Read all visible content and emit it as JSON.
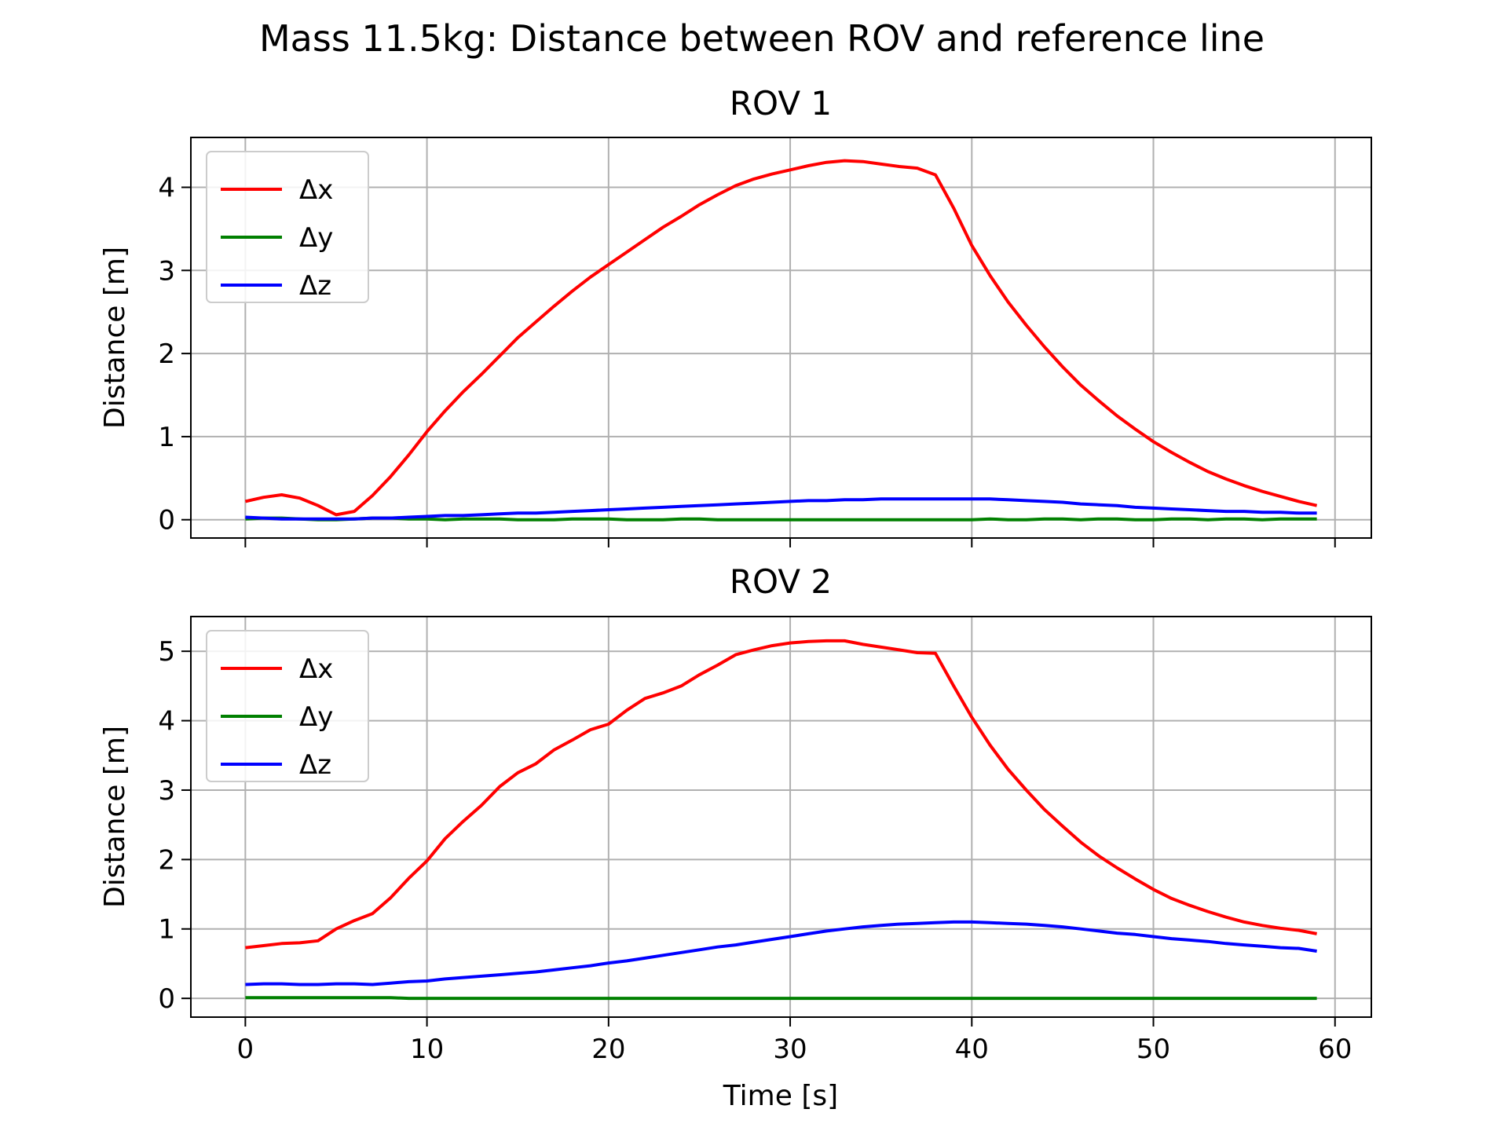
{
  "figure": {
    "suptitle": "Mass 11.5kg: Distance between ROV and reference line",
    "xlabel": "Time [s]"
  },
  "chart_data": [
    {
      "type": "line",
      "title": "ROV 1",
      "xlabel": "",
      "ylabel": "Distance [m]",
      "xlim": [
        -3,
        62
      ],
      "ylim": [
        -0.22,
        4.6
      ],
      "xticks": [
        0,
        10,
        20,
        30,
        40,
        50,
        60
      ],
      "yticks": [
        0,
        1,
        2,
        3,
        4
      ],
      "grid": true,
      "legend": "upper-left",
      "x": [
        0,
        1,
        2,
        3,
        4,
        5,
        6,
        7,
        8,
        9,
        10,
        11,
        12,
        13,
        14,
        15,
        16,
        17,
        18,
        19,
        20,
        21,
        22,
        23,
        24,
        25,
        26,
        27,
        28,
        29,
        30,
        31,
        32,
        33,
        34,
        35,
        36,
        37,
        38,
        39,
        40,
        41,
        42,
        43,
        44,
        45,
        46,
        47,
        48,
        49,
        50,
        51,
        52,
        53,
        54,
        55,
        56,
        57,
        58,
        59
      ],
      "series": [
        {
          "name": "Δx",
          "color": "#ff0000",
          "values": [
            0.22,
            0.27,
            0.3,
            0.26,
            0.17,
            0.06,
            0.1,
            0.29,
            0.52,
            0.78,
            1.06,
            1.31,
            1.54,
            1.75,
            1.97,
            2.19,
            2.38,
            2.57,
            2.75,
            2.92,
            3.07,
            3.22,
            3.37,
            3.52,
            3.65,
            3.79,
            3.91,
            4.02,
            4.1,
            4.16,
            4.21,
            4.26,
            4.3,
            4.32,
            4.31,
            4.28,
            4.25,
            4.23,
            4.15,
            3.75,
            3.3,
            2.94,
            2.62,
            2.34,
            2.08,
            1.84,
            1.62,
            1.43,
            1.25,
            1.09,
            0.94,
            0.81,
            0.69,
            0.58,
            0.49,
            0.41,
            0.34,
            0.28,
            0.22,
            0.17
          ]
        },
        {
          "name": "Δy",
          "color": "#008000",
          "values": [
            0.01,
            0.02,
            0.02,
            0.01,
            0.0,
            0.0,
            0.01,
            0.02,
            0.02,
            0.01,
            0.01,
            0.0,
            0.01,
            0.01,
            0.01,
            0.0,
            0.0,
            0.0,
            0.01,
            0.01,
            0.01,
            0.0,
            0.0,
            0.0,
            0.01,
            0.01,
            0.0,
            0.0,
            0.0,
            0.0,
            0.0,
            0.0,
            0.0,
            0.0,
            0.0,
            0.0,
            0.0,
            0.0,
            0.0,
            0.0,
            0.0,
            0.01,
            0.0,
            0.0,
            0.01,
            0.01,
            0.0,
            0.01,
            0.01,
            0.0,
            0.0,
            0.01,
            0.01,
            0.0,
            0.01,
            0.01,
            0.0,
            0.01,
            0.01,
            0.01
          ]
        },
        {
          "name": "Δz",
          "color": "#0000ff",
          "values": [
            0.03,
            0.02,
            0.01,
            0.01,
            0.01,
            0.01,
            0.01,
            0.02,
            0.02,
            0.03,
            0.04,
            0.05,
            0.05,
            0.06,
            0.07,
            0.08,
            0.08,
            0.09,
            0.1,
            0.11,
            0.12,
            0.13,
            0.14,
            0.15,
            0.16,
            0.17,
            0.18,
            0.19,
            0.2,
            0.21,
            0.22,
            0.23,
            0.23,
            0.24,
            0.24,
            0.25,
            0.25,
            0.25,
            0.25,
            0.25,
            0.25,
            0.25,
            0.24,
            0.23,
            0.22,
            0.21,
            0.19,
            0.18,
            0.17,
            0.15,
            0.14,
            0.13,
            0.12,
            0.11,
            0.1,
            0.1,
            0.09,
            0.09,
            0.08,
            0.08
          ]
        }
      ]
    },
    {
      "type": "line",
      "title": "ROV 2",
      "xlabel": "Time [s]",
      "ylabel": "Distance [m]",
      "xlim": [
        -3,
        62
      ],
      "ylim": [
        -0.27,
        5.5
      ],
      "xticks": [
        0,
        10,
        20,
        30,
        40,
        50,
        60
      ],
      "yticks": [
        0,
        1,
        2,
        3,
        4,
        5
      ],
      "grid": true,
      "legend": "upper-left",
      "x": [
        0,
        1,
        2,
        3,
        4,
        5,
        6,
        7,
        8,
        9,
        10,
        11,
        12,
        13,
        14,
        15,
        16,
        17,
        18,
        19,
        20,
        21,
        22,
        23,
        24,
        25,
        26,
        27,
        28,
        29,
        30,
        31,
        32,
        33,
        34,
        35,
        36,
        37,
        38,
        39,
        40,
        41,
        42,
        43,
        44,
        45,
        46,
        47,
        48,
        49,
        50,
        51,
        52,
        53,
        54,
        55,
        56,
        57,
        58,
        59
      ],
      "series": [
        {
          "name": "Δx",
          "color": "#ff0000",
          "values": [
            0.73,
            0.76,
            0.79,
            0.8,
            0.83,
            1.0,
            1.12,
            1.22,
            1.45,
            1.73,
            1.98,
            2.3,
            2.55,
            2.78,
            3.05,
            3.25,
            3.38,
            3.58,
            3.72,
            3.87,
            3.95,
            4.15,
            4.32,
            4.4,
            4.5,
            4.66,
            4.8,
            4.95,
            5.02,
            5.08,
            5.12,
            5.14,
            5.15,
            5.15,
            5.1,
            5.06,
            5.02,
            4.98,
            4.97,
            4.5,
            4.05,
            3.65,
            3.3,
            3.0,
            2.72,
            2.48,
            2.25,
            2.05,
            1.88,
            1.72,
            1.57,
            1.44,
            1.34,
            1.25,
            1.17,
            1.1,
            1.05,
            1.01,
            0.98,
            0.93
          ]
        },
        {
          "name": "Δy",
          "color": "#008000",
          "values": [
            0.01,
            0.01,
            0.01,
            0.01,
            0.01,
            0.01,
            0.01,
            0.01,
            0.01,
            0.0,
            0.0,
            0.0,
            0.0,
            0.0,
            0.0,
            0.0,
            0.0,
            0.0,
            0.0,
            0.0,
            0.0,
            0.0,
            0.0,
            0.0,
            0.0,
            0.0,
            0.0,
            0.0,
            0.0,
            0.0,
            0.0,
            0.0,
            0.0,
            0.0,
            0.0,
            0.0,
            0.0,
            0.0,
            0.0,
            0.0,
            0.0,
            0.0,
            0.0,
            0.0,
            0.0,
            0.0,
            0.0,
            0.0,
            0.0,
            0.0,
            0.0,
            0.0,
            0.0,
            0.0,
            0.0,
            0.0,
            0.0,
            0.0,
            0.0,
            0.0
          ]
        },
        {
          "name": "Δz",
          "color": "#0000ff",
          "values": [
            0.2,
            0.21,
            0.21,
            0.2,
            0.2,
            0.21,
            0.21,
            0.2,
            0.22,
            0.24,
            0.25,
            0.28,
            0.3,
            0.32,
            0.34,
            0.36,
            0.38,
            0.41,
            0.44,
            0.47,
            0.51,
            0.54,
            0.58,
            0.62,
            0.66,
            0.7,
            0.74,
            0.77,
            0.81,
            0.85,
            0.89,
            0.93,
            0.97,
            1.0,
            1.03,
            1.05,
            1.07,
            1.08,
            1.09,
            1.1,
            1.1,
            1.09,
            1.08,
            1.07,
            1.05,
            1.03,
            1.0,
            0.97,
            0.94,
            0.92,
            0.89,
            0.86,
            0.84,
            0.82,
            0.79,
            0.77,
            0.75,
            0.73,
            0.72,
            0.68
          ]
        }
      ]
    }
  ]
}
